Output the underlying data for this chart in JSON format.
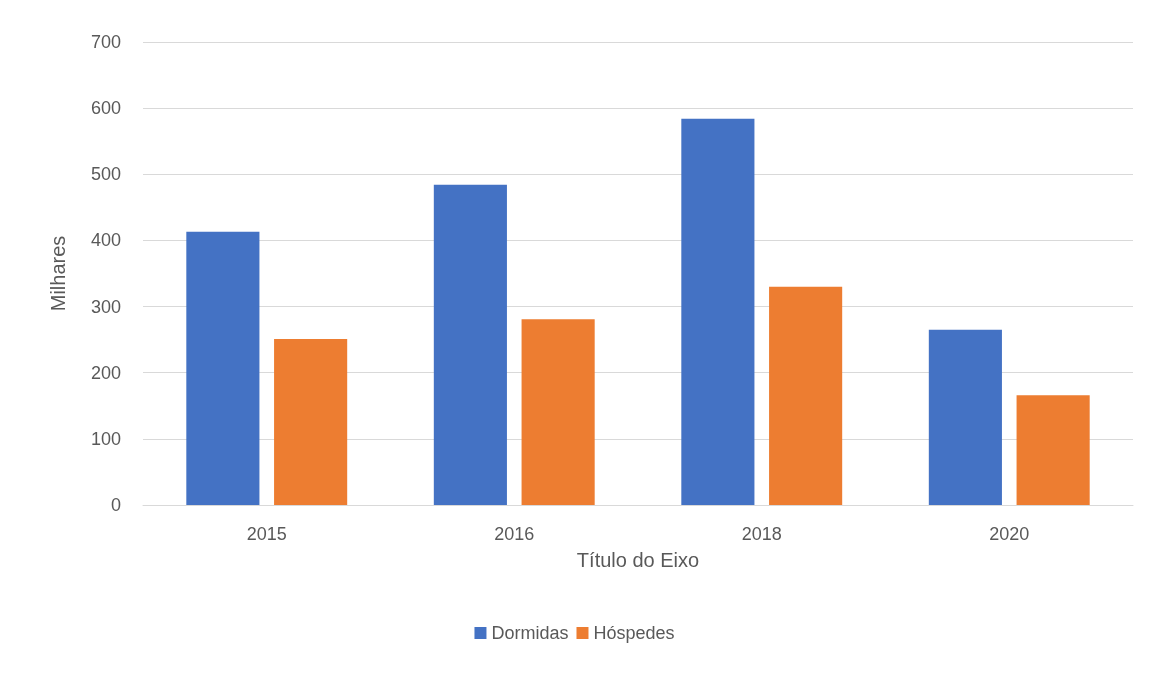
{
  "chart_data": {
    "type": "bar",
    "xlabel": "Título do Eixo",
    "ylabel": "Milhares",
    "categories": [
      "2015",
      "2016",
      "2018",
      "2020"
    ],
    "series": [
      {
        "name": "Dormidas",
        "color": "#4472c4",
        "values": [
          413,
          484,
          584,
          265
        ]
      },
      {
        "name": "Hóspedes",
        "color": "#ed7d31",
        "values": [
          251,
          281,
          330,
          166
        ]
      }
    ],
    "ylim": [
      0,
      700
    ],
    "yticks": [
      0,
      100,
      200,
      300,
      400,
      500,
      600,
      700
    ],
    "grid": "y",
    "legend": "bottom"
  }
}
